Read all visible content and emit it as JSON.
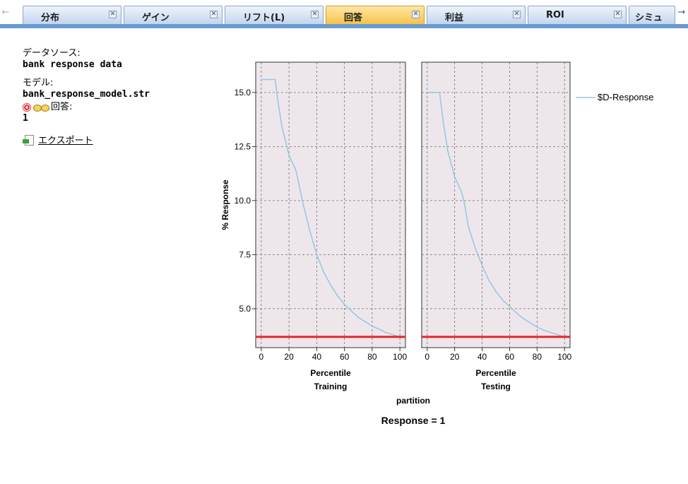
{
  "tabs": [
    {
      "label": "分布",
      "active": false
    },
    {
      "label": "ゲイン",
      "active": false
    },
    {
      "label": "リフト(L)",
      "active": false
    },
    {
      "label": "回答",
      "active": true
    },
    {
      "label": "利益",
      "active": false
    },
    {
      "label": "ROI",
      "active": false
    },
    {
      "label": "シミュ",
      "active": false
    }
  ],
  "tab_scroll": {
    "left": "←",
    "right": "→"
  },
  "info": {
    "source_label": "データソース:",
    "source_value": "bank response data",
    "model_label": "モデル:",
    "model_value": "bank_response_model.str",
    "target_label": "回答:",
    "target_value": "1",
    "export_label": "エクスポート"
  },
  "icons": {
    "target": "target-icon",
    "link": "link-icon",
    "export": "export-icon"
  },
  "chart_data": {
    "type": "line",
    "title": "Response = 1",
    "facet_label": "partition",
    "ylabel": "% Response",
    "xlabel": "Percentile",
    "ylim": [
      3.2,
      16.4
    ],
    "xlim": [
      -4,
      104
    ],
    "yticks": [
      "5.0",
      "7.5",
      "10.0",
      "12.5",
      "15.0"
    ],
    "xticks": [
      "0",
      "20",
      "40",
      "60",
      "80",
      "100"
    ],
    "legend": "$D-Response",
    "baseline": 3.7,
    "colors": {
      "series": "#9cc6de",
      "baseline": "#e8262b",
      "panel": "#ede7ec",
      "grid": "#6e6e6e"
    },
    "panels": [
      {
        "name": "Training",
        "x": [
          0,
          1,
          5,
          10,
          12,
          15,
          20,
          25,
          27,
          30,
          35,
          40,
          45,
          50,
          55,
          60,
          65,
          70,
          75,
          80,
          85,
          90,
          95,
          100
        ],
        "y": [
          15.6,
          15.6,
          15.6,
          15.6,
          14.6,
          13.4,
          12.1,
          11.4,
          10.8,
          9.9,
          8.6,
          7.5,
          6.7,
          6.1,
          5.6,
          5.2,
          4.9,
          4.6,
          4.4,
          4.2,
          4.05,
          3.9,
          3.8,
          3.7
        ]
      },
      {
        "name": "Testing",
        "x": [
          0,
          1,
          5,
          9,
          12,
          15,
          20,
          25,
          27,
          30,
          35,
          40,
          45,
          50,
          55,
          60,
          65,
          70,
          75,
          80,
          85,
          90,
          95,
          100
        ],
        "y": [
          15.0,
          15.0,
          15.0,
          15.0,
          13.5,
          12.3,
          11.1,
          10.4,
          9.9,
          8.8,
          7.8,
          7.0,
          6.3,
          5.8,
          5.4,
          5.1,
          4.8,
          4.55,
          4.35,
          4.15,
          4.0,
          3.9,
          3.8,
          3.7
        ]
      }
    ]
  }
}
